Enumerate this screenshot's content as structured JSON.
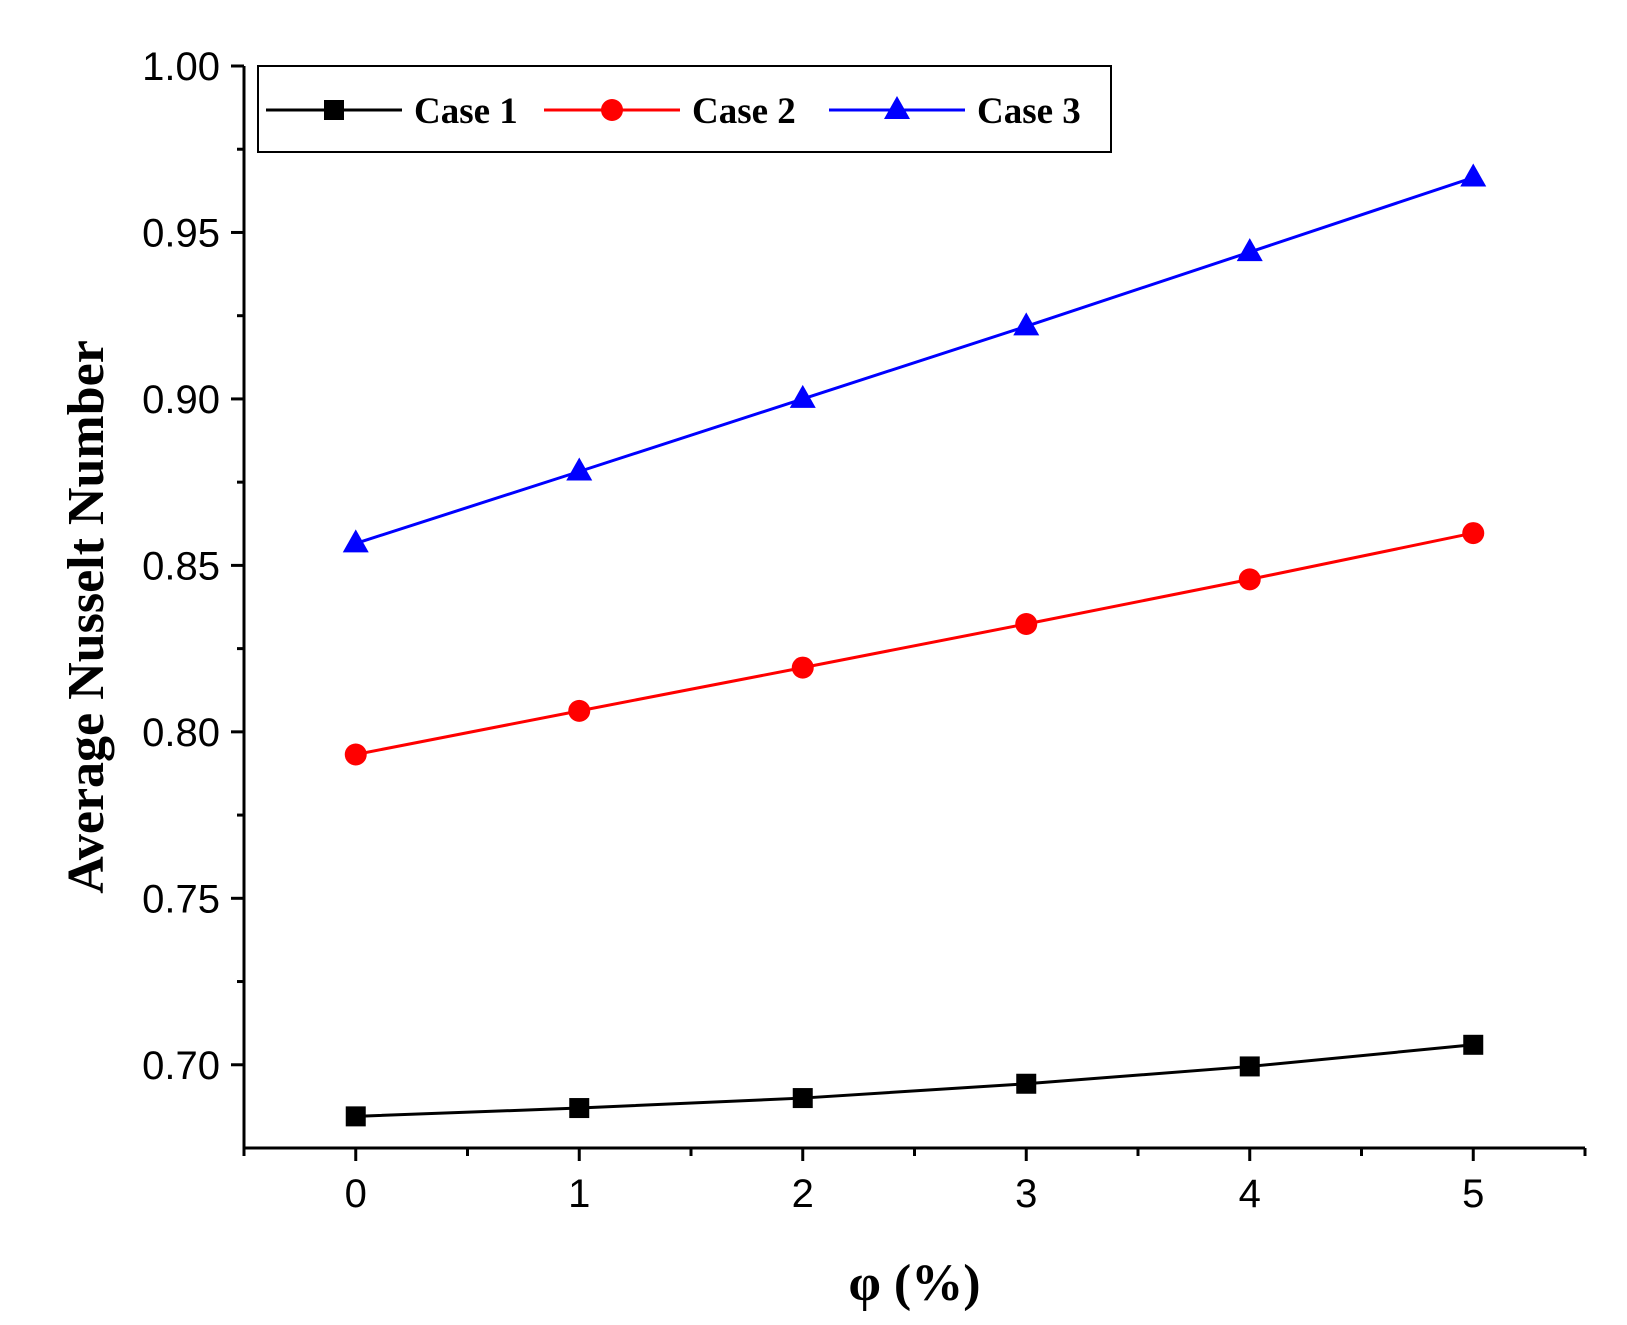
{
  "chart_data": {
    "type": "line",
    "title": "",
    "xlabel": "φ (%)",
    "ylabel": "Average Nusselt Number",
    "x": [
      0,
      1,
      2,
      3,
      4,
      5
    ],
    "xlim": [
      -0.5,
      5.5
    ],
    "ylim": [
      0.675,
      1.0
    ],
    "xticks": [
      "0",
      "1",
      "2",
      "3",
      "4",
      "5"
    ],
    "yticks": [
      "0.70",
      "0.75",
      "0.80",
      "0.85",
      "0.90",
      "0.95",
      "1.00"
    ],
    "grid": false,
    "legend_position": "top-left",
    "series": [
      {
        "name": "Case 1",
        "color": "#000000",
        "marker": "square",
        "values": [
          0.6845,
          0.687,
          0.69,
          0.6943,
          0.6995,
          0.706
        ]
      },
      {
        "name": "Case 2",
        "color": "#ff0000",
        "marker": "circle",
        "values": [
          0.7932,
          0.8063,
          0.8193,
          0.8324,
          0.8458,
          0.8597
        ]
      },
      {
        "name": "Case 3",
        "color": "#0000ff",
        "marker": "triangle",
        "values": [
          0.8566,
          0.8782,
          0.9,
          0.9218,
          0.9441,
          0.9665
        ]
      }
    ]
  }
}
